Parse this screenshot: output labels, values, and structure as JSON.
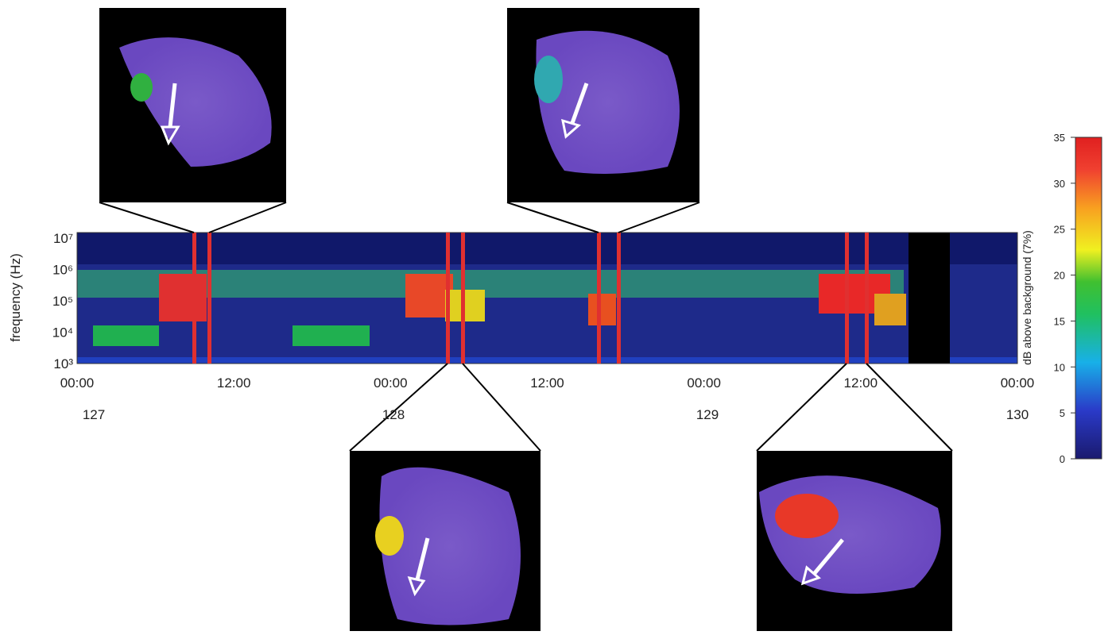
{
  "figure": {
    "spectrogram": {
      "ylabel": "frequency (Hz)",
      "yticks": [
        "10⁷",
        "10⁶",
        "10⁵",
        "10⁴",
        "10³"
      ],
      "xticks": [
        "00:00",
        "12:00",
        "00:00",
        "12:00",
        "00:00",
        "12:00",
        "00:00"
      ],
      "days": [
        "127",
        "128",
        "129",
        "130"
      ]
    },
    "colorbar": {
      "label": "dB above background (7%)",
      "ticks": [
        0,
        5,
        10,
        15,
        20,
        25,
        30,
        35
      ],
      "lim": [
        0,
        35
      ]
    }
  }
}
